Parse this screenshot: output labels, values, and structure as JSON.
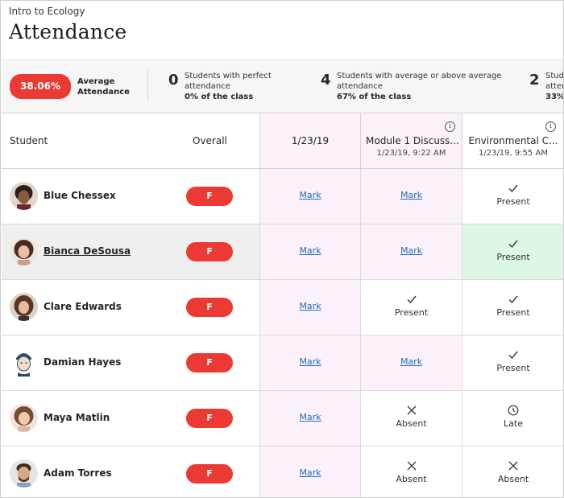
{
  "header": {
    "course": "Intro to Ecology",
    "title": "Attendance"
  },
  "summary": {
    "average_value": "38.06%",
    "average_label_1": "Average",
    "average_label_2": "Attendance",
    "stats": [
      {
        "number": "0",
        "line1": "Students with perfect",
        "line2": "attendance",
        "pct": "0% of the class"
      },
      {
        "number": "4",
        "line1": "Students with average or above average",
        "line2": "attendance",
        "pct": "67% of the class"
      },
      {
        "number": "2",
        "line1": "Stude",
        "line2": "atten",
        "pct": "33%"
      }
    ]
  },
  "table": {
    "col_student": "Student",
    "col_overall": "Overall",
    "columns": [
      {
        "title": "1/23/19",
        "sub": ""
      },
      {
        "title": "Module 1 Discuss...",
        "sub": "1/23/19, 9:22 AM"
      },
      {
        "title": "Environmental C...",
        "sub": "1/23/19, 9:55 AM"
      }
    ],
    "rows": [
      {
        "name": "Blue Chessex",
        "grade": "F",
        "c1": "Mark",
        "c2": "Mark",
        "c3": "Present"
      },
      {
        "name": "Bianca DeSousa",
        "grade": "F",
        "c1": "Mark",
        "c2": "Mark",
        "c3": "Present"
      },
      {
        "name": "Clare Edwards",
        "grade": "F",
        "c1": "Mark",
        "c2": "Present",
        "c3": "Present"
      },
      {
        "name": "Damian Hayes",
        "grade": "F",
        "c1": "Mark",
        "c2": "Mark",
        "c3": "Present"
      },
      {
        "name": "Maya Matlin",
        "grade": "F",
        "c1": "Mark",
        "c2": "Absent",
        "c3": "Late"
      },
      {
        "name": "Adam Torres",
        "grade": "F",
        "c1": "Mark",
        "c2": "Absent",
        "c3": "Absent"
      }
    ]
  },
  "colors": {
    "grade_red": "#ea3a33",
    "link_blue": "#1f6fb5",
    "pink_column": "#faf1fb",
    "present_highlight": "#ddf7e6",
    "selected_row": "#efefef"
  },
  "icons": {
    "present": "check-icon",
    "absent": "x-icon",
    "late": "clock-icon",
    "info": "info-icon"
  }
}
